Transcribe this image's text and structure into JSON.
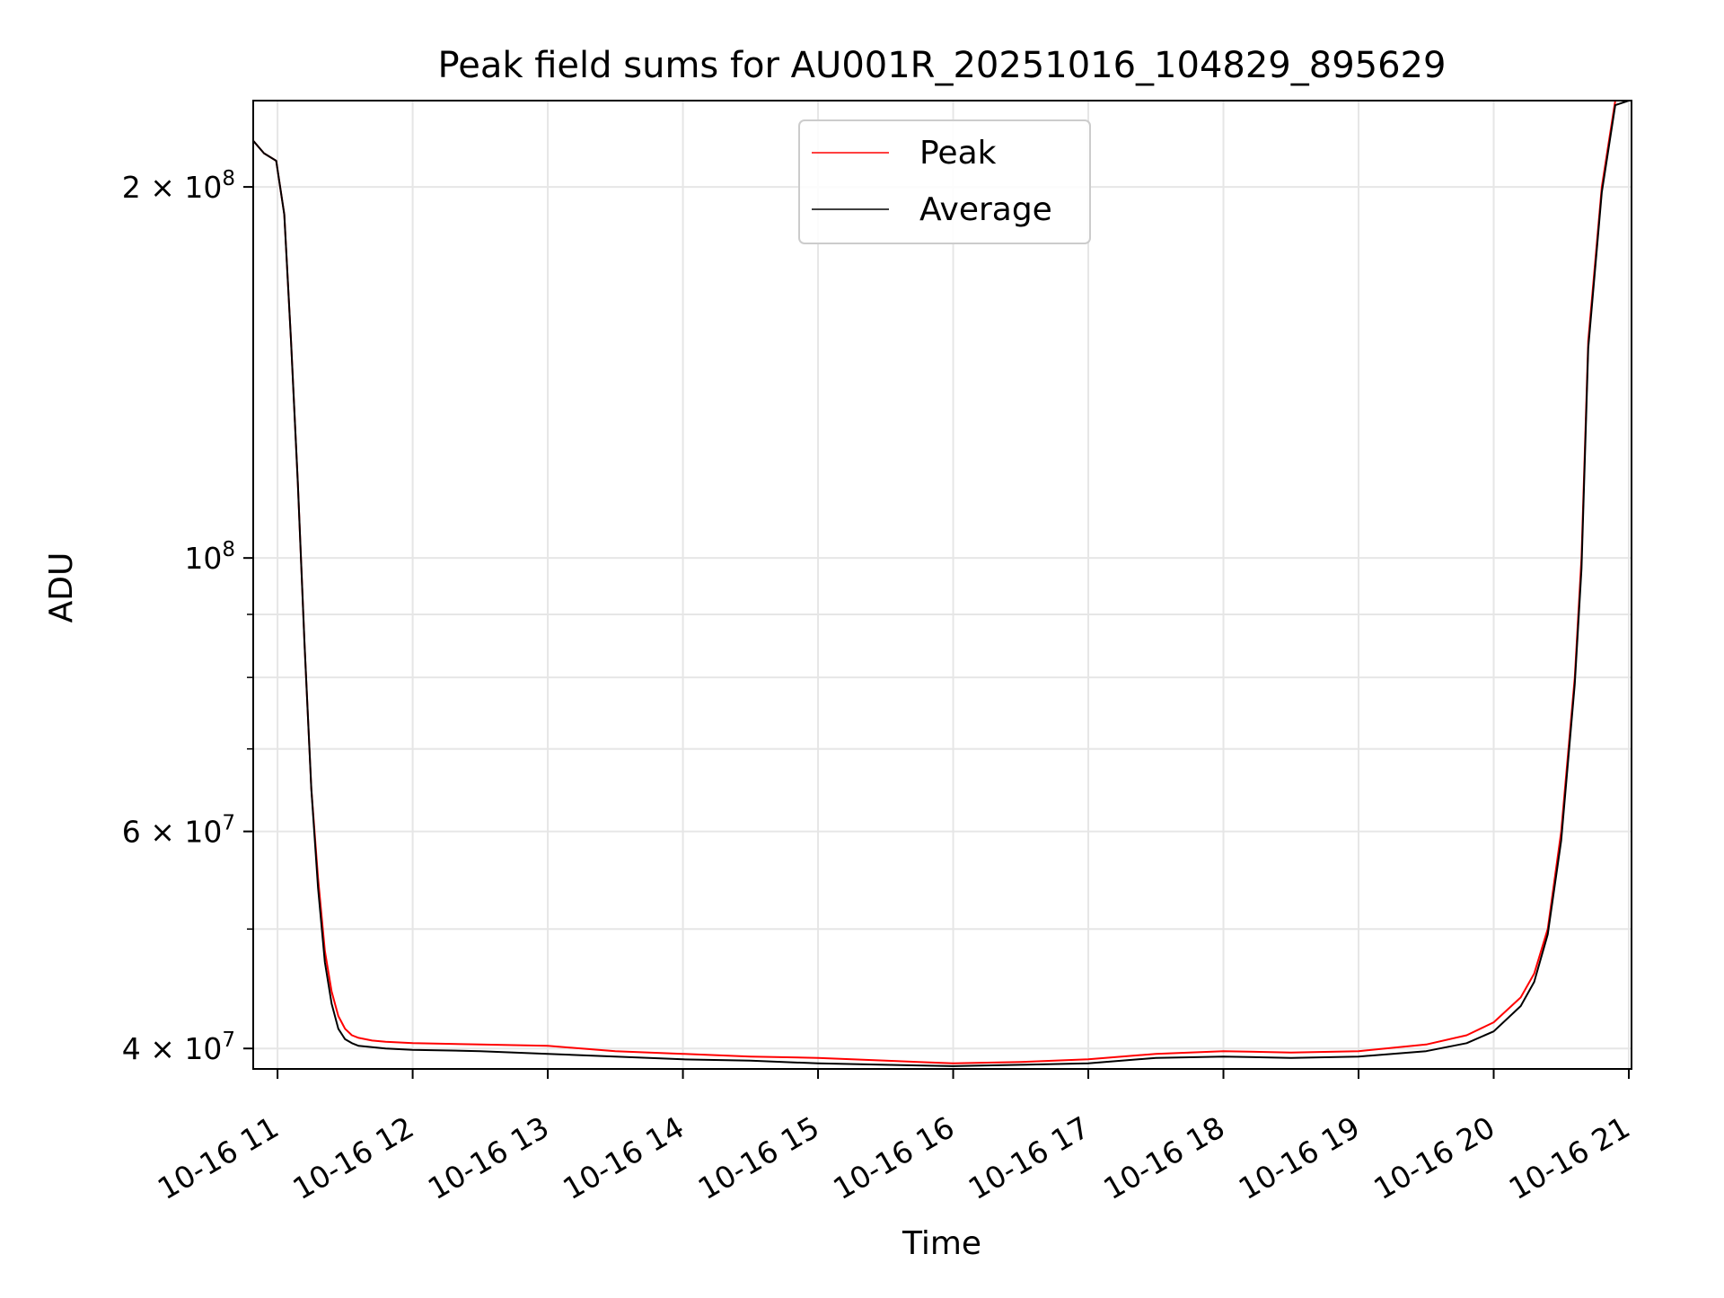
{
  "chart_data": {
    "type": "line",
    "title": "Peak field sums for AU001R_20251016_104829_895629",
    "xlabel": "Time",
    "ylabel": "ADU",
    "yscale": "log",
    "ylim": [
      38500000,
      235000000
    ],
    "xlim_hours": [
      10.82,
      21.02
    ],
    "grid": true,
    "legend_position": "upper center",
    "x_ticks": [
      {
        "value": 11,
        "label": "10-16 11"
      },
      {
        "value": 12,
        "label": "10-16 12"
      },
      {
        "value": 13,
        "label": "10-16 13"
      },
      {
        "value": 14,
        "label": "10-16 14"
      },
      {
        "value": 15,
        "label": "10-16 15"
      },
      {
        "value": 16,
        "label": "10-16 16"
      },
      {
        "value": 17,
        "label": "10-16 17"
      },
      {
        "value": 18,
        "label": "10-16 18"
      },
      {
        "value": 19,
        "label": "10-16 19"
      },
      {
        "value": 20,
        "label": "10-16 20"
      },
      {
        "value": 21,
        "label": "10-16 21"
      }
    ],
    "y_major_ticks": [
      {
        "value": 40000000,
        "mantissa": "4",
        "exponent": "7",
        "label_prefix": "4 × 10",
        "label": "4 × 10^7"
      },
      {
        "value": 60000000,
        "mantissa": "6",
        "exponent": "7",
        "label_prefix": "6 × 10",
        "label": "6 × 10^7"
      },
      {
        "value": 100000000,
        "mantissa": "",
        "exponent": "8",
        "label_prefix": "10",
        "label": "10^8"
      },
      {
        "value": 200000000,
        "mantissa": "2",
        "exponent": "8",
        "label_prefix": "2 × 10",
        "label": "2 × 10^8"
      }
    ],
    "y_minor_ticks": [
      50000000,
      70000000,
      80000000,
      90000000
    ],
    "series": [
      {
        "name": "Peak",
        "color": "#ff0000",
        "x": [
          10.82,
          10.9,
          10.99,
          11.05,
          11.1,
          11.15,
          11.2,
          11.25,
          11.3,
          11.35,
          11.4,
          11.45,
          11.5,
          11.55,
          11.6,
          11.7,
          11.8,
          12.0,
          12.5,
          13.0,
          13.5,
          14.0,
          14.5,
          15.0,
          15.5,
          16.0,
          16.5,
          17.0,
          17.5,
          18.0,
          18.5,
          19.0,
          19.5,
          19.8,
          20.0,
          20.2,
          20.3,
          20.4,
          20.5,
          20.6,
          20.65,
          20.7,
          20.8,
          20.9,
          21.0
        ],
        "values": [
          218000000,
          213000000,
          210000000,
          190000000,
          150000000,
          115000000,
          85000000,
          65000000,
          55000000,
          48000000,
          44500000,
          42500000,
          41500000,
          41000000,
          40800000,
          40600000,
          40500000,
          40400000,
          40300000,
          40200000,
          39800000,
          39600000,
          39400000,
          39300000,
          39100000,
          38900000,
          39000000,
          39200000,
          39600000,
          39800000,
          39700000,
          39800000,
          40300000,
          41000000,
          42000000,
          44000000,
          46000000,
          50000000,
          60000000,
          80000000,
          100000000,
          150000000,
          200000000,
          235000000,
          235000000
        ]
      },
      {
        "name": "Average",
        "color": "#000000",
        "x": [
          10.82,
          10.9,
          10.99,
          11.05,
          11.1,
          11.15,
          11.2,
          11.25,
          11.3,
          11.35,
          11.4,
          11.45,
          11.5,
          11.55,
          11.6,
          11.7,
          11.8,
          12.0,
          12.5,
          13.0,
          13.5,
          14.0,
          14.5,
          15.0,
          15.5,
          16.0,
          16.5,
          17.0,
          17.5,
          18.0,
          18.5,
          19.0,
          19.5,
          19.8,
          20.0,
          20.2,
          20.3,
          20.4,
          20.5,
          20.6,
          20.65,
          20.7,
          20.8,
          20.9,
          21.0
        ],
        "values": [
          218000000,
          213000000,
          210000000,
          190000000,
          150000000,
          115000000,
          85000000,
          65000000,
          54000000,
          47000000,
          43500000,
          41500000,
          40700000,
          40400000,
          40200000,
          40100000,
          40000000,
          39900000,
          39800000,
          39600000,
          39400000,
          39200000,
          39100000,
          38900000,
          38800000,
          38700000,
          38800000,
          38900000,
          39300000,
          39400000,
          39300000,
          39400000,
          39800000,
          40400000,
          41300000,
          43300000,
          45300000,
          49500000,
          59000000,
          79000000,
          98000000,
          148000000,
          198000000,
          233000000,
          235000000
        ]
      }
    ]
  }
}
